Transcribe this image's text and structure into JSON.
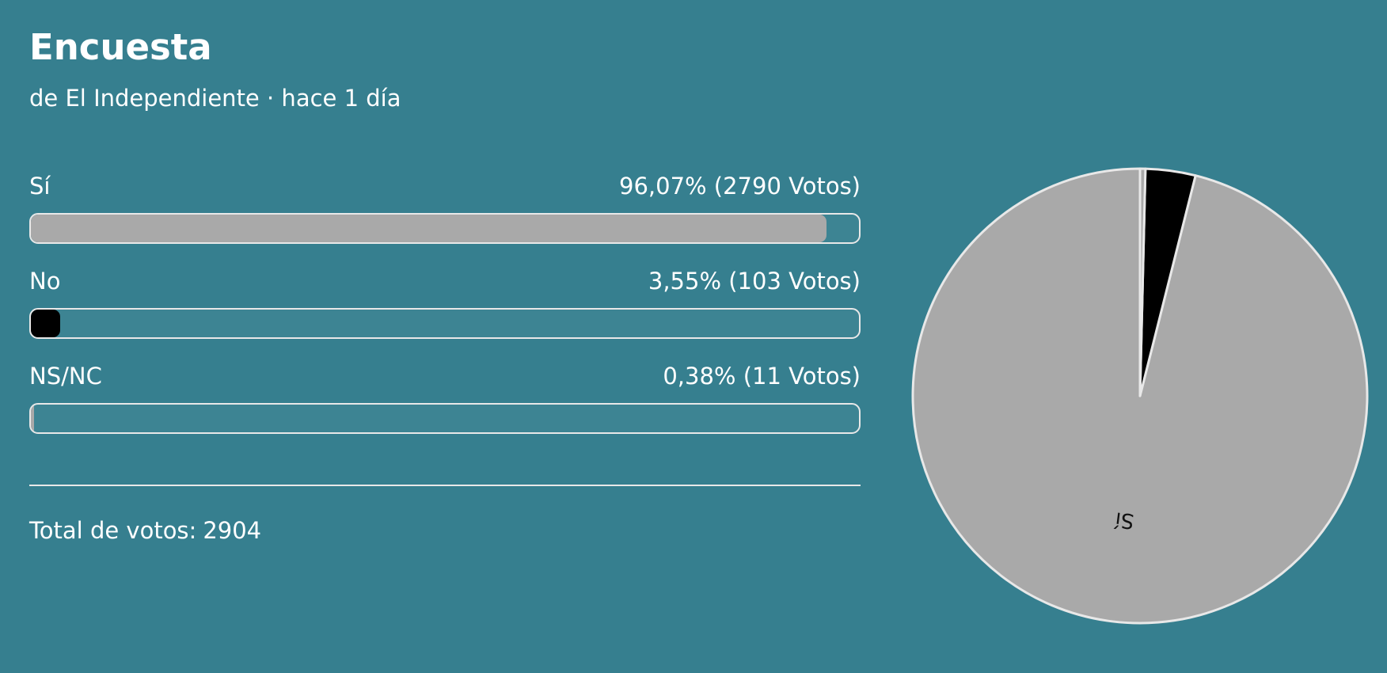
{
  "poll": {
    "title": "Encuesta",
    "meta": "de El Independiente · hace 1 día",
    "options": [
      {
        "label": "Sí",
        "result": "96,07% (2790 Votos)",
        "percent": 96.07,
        "votes": 2790,
        "color": "#a9a9a9"
      },
      {
        "label": "No",
        "result": "3,55% (103 Votos)",
        "percent": 3.55,
        "votes": 103,
        "color": "#000000"
      },
      {
        "label": "NS/NC",
        "result": "0,38% (11 Votos)",
        "percent": 0.38,
        "votes": 11,
        "color": "#a9a9a9"
      }
    ],
    "total_label": "Total de votos:",
    "total": "2904"
  },
  "chart_data": {
    "type": "pie",
    "categories": [
      "Sí",
      "No",
      "NS/NC"
    ],
    "values": [
      96.07,
      3.55,
      0.38
    ],
    "colors": [
      "#a9a9a9",
      "#000000",
      "#a9a9a9"
    ],
    "slice_labels": [
      "Sí",
      "",
      ""
    ]
  },
  "theme": {
    "background": "#367f8f",
    "text": "#ffffff",
    "border": "#e8e8e8",
    "track": "#3d8493"
  }
}
